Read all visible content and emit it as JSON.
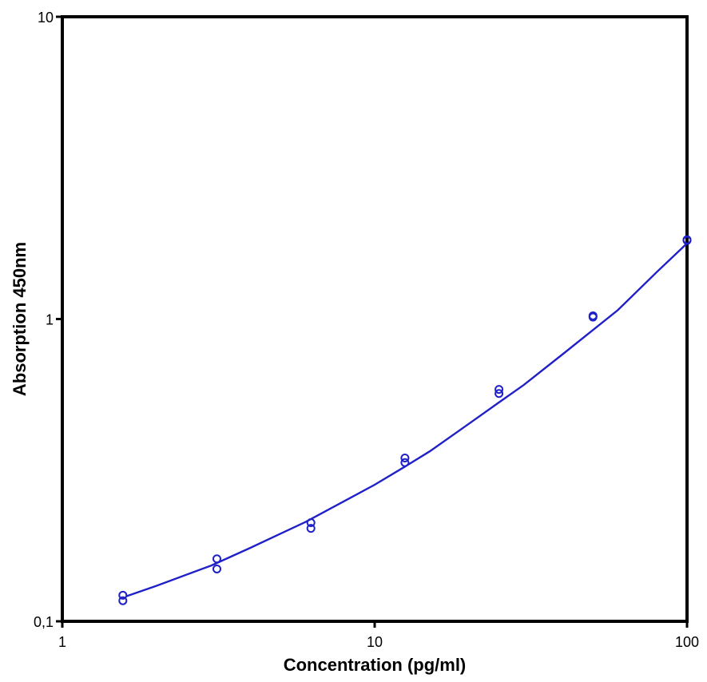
{
  "chart_data": {
    "type": "scatter",
    "title": "",
    "xlabel": "Concentration (pg/ml)",
    "ylabel": "Absorption 450nm",
    "x_scale": "log",
    "y_scale": "log",
    "xlim": [
      1,
      100
    ],
    "ylim": [
      0.1,
      10
    ],
    "x_ticks": [
      1,
      10,
      100
    ],
    "x_tick_labels": [
      "1",
      "10",
      "100"
    ],
    "y_ticks": [
      0.1,
      1,
      10
    ],
    "y_tick_labels": [
      "0,1",
      "1",
      "10"
    ],
    "grid": false,
    "legend": "none",
    "colors": {
      "series": "#2020c8",
      "axis": "#000000"
    },
    "series": [
      {
        "marker": "circle",
        "x": [
          1.5625,
          1.5625,
          3.125,
          3.125,
          6.25,
          6.25,
          12.5,
          12.5,
          25,
          25,
          50,
          50,
          100,
          100
        ],
        "y": [
          0.122,
          0.117,
          0.161,
          0.149,
          0.212,
          0.203,
          0.347,
          0.335,
          0.585,
          0.567,
          1.025,
          1.015,
          1.83,
          1.82
        ]
      },
      {
        "type": "line",
        "x": [
          1.6,
          2,
          3,
          4,
          5,
          6,
          8,
          10,
          12.5,
          15,
          20,
          25,
          30,
          40,
          50,
          60,
          80,
          100
        ],
        "y": [
          0.121,
          0.131,
          0.153,
          0.175,
          0.195,
          0.213,
          0.25,
          0.283,
          0.325,
          0.365,
          0.45,
          0.53,
          0.605,
          0.765,
          0.92,
          1.07,
          1.43,
          1.78
        ]
      }
    ]
  }
}
